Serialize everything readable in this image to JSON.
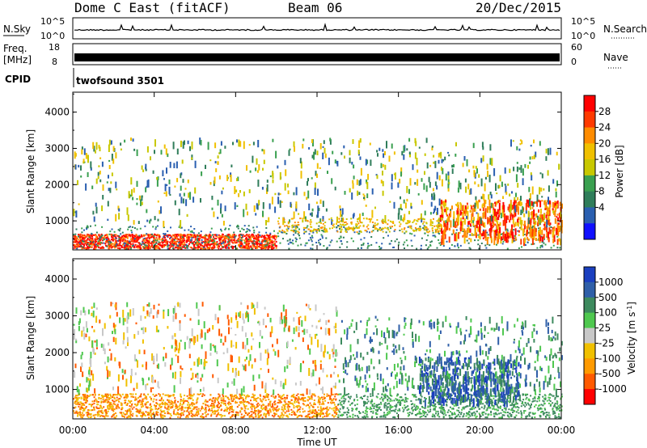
{
  "header": {
    "radar_title": "Dome C East (fitACF)",
    "beam": "Beam 06",
    "date": "20/Dec/2015"
  },
  "top_panels": {
    "nsky_label": "N.Sky",
    "nsky_ticks": [
      "10^5",
      "10^0"
    ],
    "nsearch_label": "N.Search",
    "nsearch_ticks": [
      "10^5",
      "10^0"
    ],
    "freq_label": "Freq.",
    "freq_unit": "[MHz]",
    "freq_ticks": [
      "18",
      "8"
    ],
    "nave_label": "Nave",
    "nave_ticks": [
      "60",
      "0"
    ],
    "cpid_label": "CPID",
    "cpid_value": "twofsound 3501"
  },
  "chart_data": [
    {
      "type": "heatmap",
      "ylabel": "Slant Range [km]",
      "xlabel": "Time UT",
      "xticks": [
        "00:00",
        "04:00",
        "08:00",
        "12:00",
        "16:00",
        "20:00",
        "00:00"
      ],
      "yticks": [
        "1000",
        "2000",
        "3000",
        "4000"
      ],
      "ylim": [
        200,
        4550
      ],
      "colorbar": {
        "label": "Power [dB]",
        "ticks": [
          "28",
          "24",
          "20",
          "16",
          "12",
          "8",
          "4"
        ],
        "colors": [
          "#ff0000",
          "#ff3a00",
          "#ff8c00",
          "#f0c000",
          "#c8c800",
          "#3aa050",
          "#2f7d5a",
          "#2a5fb0",
          "#1010ff"
        ]
      }
    },
    {
      "type": "heatmap",
      "ylabel": "Slant Range [km]",
      "xlabel": "Time UT",
      "xticks": [
        "00:00",
        "04:00",
        "08:00",
        "12:00",
        "16:00",
        "20:00",
        "00:00"
      ],
      "yticks": [
        "1000",
        "2000",
        "3000",
        "4000"
      ],
      "ylim": [
        200,
        4550
      ],
      "colorbar": {
        "label": "Velocity [m s^-1]",
        "ticks": [
          "1000",
          "500",
          "100",
          "25",
          "-25",
          "-100",
          "-500",
          "-1000"
        ],
        "colors": [
          "#1a3fbf",
          "#2f5fa8",
          "#3d8a5e",
          "#4fc84f",
          "#c8c8c8",
          "#f0c000",
          "#ff9a00",
          "#ff5a00",
          "#ff0000"
        ]
      }
    }
  ]
}
